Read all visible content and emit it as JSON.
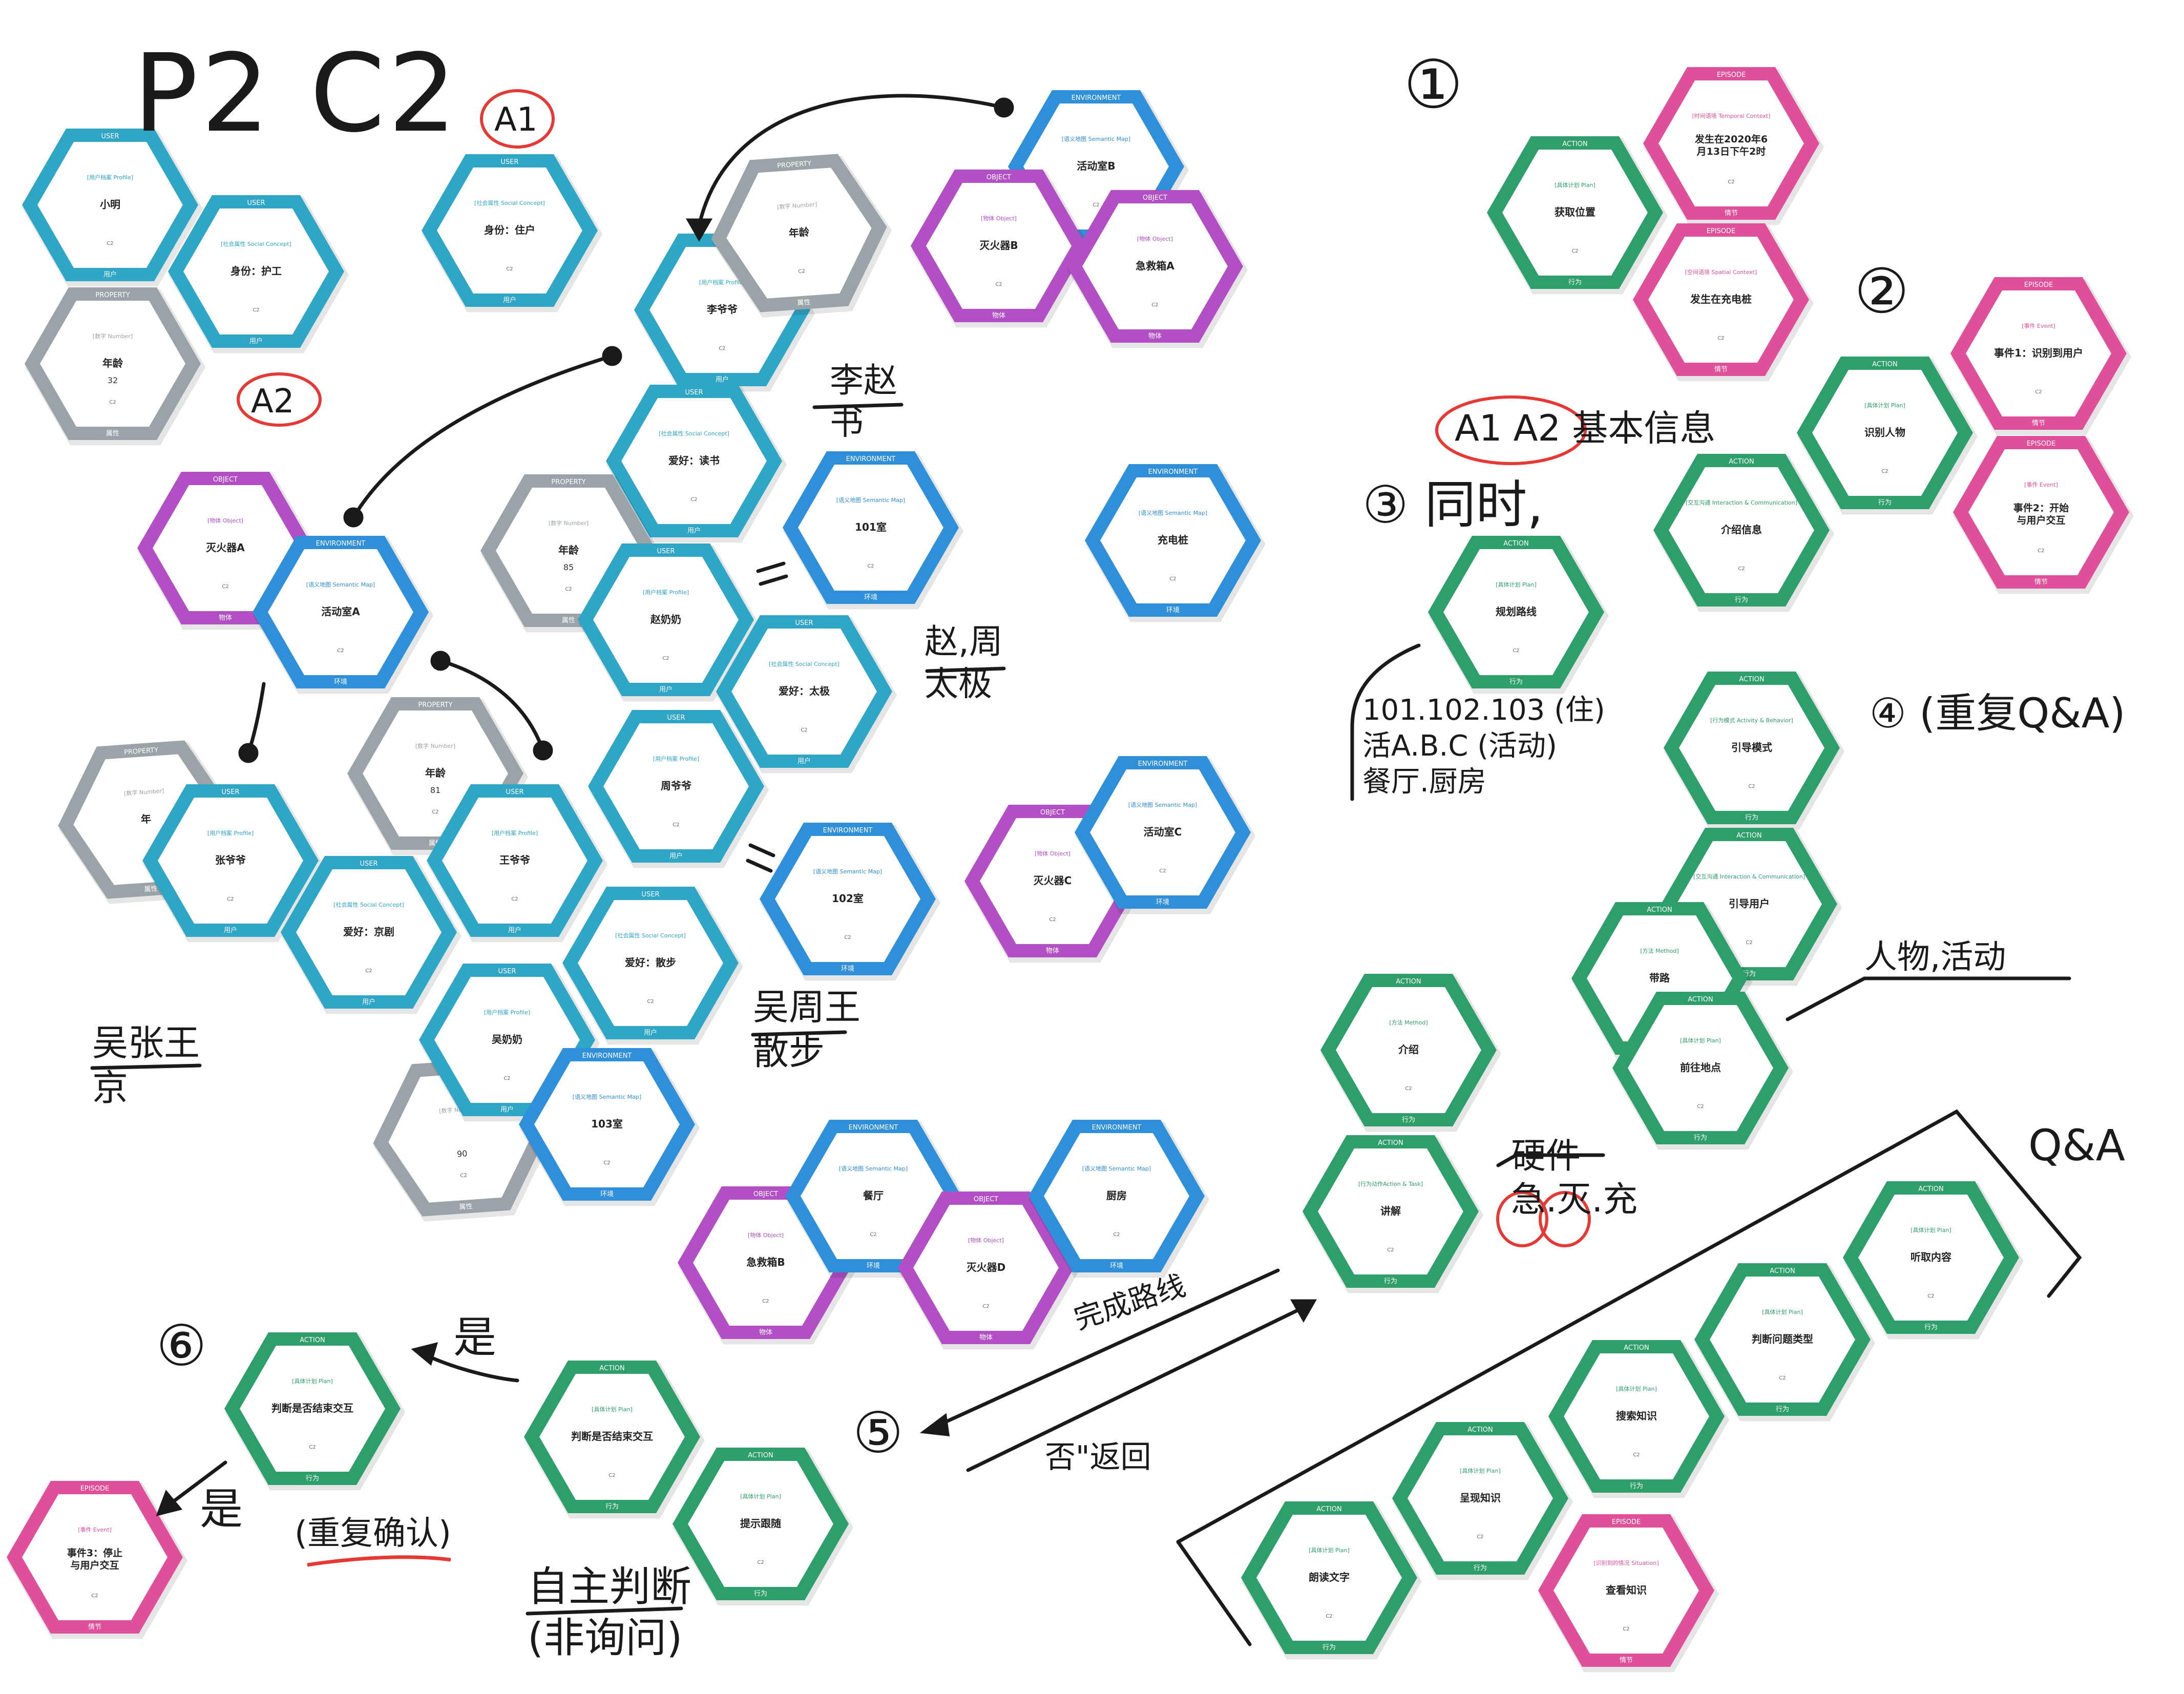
{
  "colors": {
    "user": "#2fa6c6",
    "property": "#9aa3a8",
    "social": "#2fa6c6",
    "environment": "#2f8fd8",
    "object": "#b24fc4",
    "action": "#2e9e6a",
    "episode": "#e0509a",
    "ink": "#1a1a1a",
    "circle_red": "#e53935"
  },
  "board_title": "P2  C2",
  "handwriting": {
    "a1": "A1",
    "a2": "A2",
    "zhao_zhou": "赵,周\n太极",
    "li_zhao": "李赵\n书",
    "wu_zhang_wang": "吴张王\n京",
    "wu_zhou_wang": "吴周王\n散步",
    "step1": "①",
    "step2": "②",
    "basic_info": "A1  A2 基本信息",
    "step3": "③ 同时,",
    "rooms": "101.102.103 (住)\n活A.B.C (活动)\n餐厅.厨房",
    "step4": "④ (重复Q&A)",
    "people_activity": "人物,活动",
    "hardware": "硬件\n急.灭.充",
    "qa": "Q&A",
    "complete_route": "完成路线",
    "step5": "⑤",
    "no_return": "否\"返回",
    "step6": "⑥",
    "yes1": "是",
    "yes2": "是",
    "repeat_confirm": "(重复确认)",
    "self_judge": "自主判断\n(非询问)"
  },
  "cards": [
    {
      "id": "c-xiaoming",
      "type": "user",
      "header": "USER",
      "sub": "[用户档案 Profile]",
      "text": "小明",
      "extra": "",
      "footer": "用户"
    },
    {
      "id": "c-nurse",
      "type": "social",
      "header": "USER",
      "sub": "[社会属性 Social Concept]",
      "text": "身份：护工",
      "extra": "",
      "footer": "用户"
    },
    {
      "id": "c-age32",
      "type": "property",
      "header": "PROPERTY",
      "sub": "[数字 Number]",
      "text": "年龄",
      "extra": "32",
      "footer": "属性"
    },
    {
      "id": "c-resident",
      "type": "social",
      "header": "USER",
      "sub": "[社会属性 Social Concept]",
      "text": "身份：住户",
      "extra": "",
      "footer": "用户"
    },
    {
      "id": "c-li",
      "type": "user",
      "header": "USER",
      "sub": "[用户档案 Profile]",
      "text": "李爷爷",
      "extra": "",
      "footer": "用户"
    },
    {
      "id": "c-li-age",
      "type": "property",
      "header": "PROPERTY",
      "sub": "[数字 Number]",
      "text": "年龄",
      "extra": "",
      "footer": "属性"
    },
    {
      "id": "c-reading",
      "type": "social",
      "header": "USER",
      "sub": "[社会属性 Social Concept]",
      "text": "爱好：读书",
      "extra": "",
      "footer": "用户"
    },
    {
      "id": "c-room101",
      "type": "env",
      "header": "ENVIRONMENT",
      "sub": "[语义地图 Semantic Map]",
      "text": "101室",
      "extra": "",
      "footer": "环境"
    },
    {
      "id": "c-charger",
      "type": "env",
      "header": "ENVIRONMENT",
      "sub": "[语义地图 Semantic Map]",
      "text": "充电桩",
      "extra": "",
      "footer": "环境"
    },
    {
      "id": "c-zhao-age",
      "type": "property",
      "header": "PROPERTY",
      "sub": "[数字 Number]",
      "text": "年龄",
      "extra": "85",
      "footer": "属性"
    },
    {
      "id": "c-zhao",
      "type": "user",
      "header": "USER",
      "sub": "[用户档案 Profile]",
      "text": "赵奶奶",
      "extra": "",
      "footer": "用户"
    },
    {
      "id": "c-taichi",
      "type": "social",
      "header": "USER",
      "sub": "[社会属性 Social Concept]",
      "text": "爱好：太极",
      "extra": "",
      "footer": "用户"
    },
    {
      "id": "c-zhou",
      "type": "user",
      "header": "USER",
      "sub": "[用户档案 Profile]",
      "text": "周爷爷",
      "extra": "",
      "footer": "用户"
    },
    {
      "id": "c-room102",
      "type": "env",
      "header": "ENVIRONMENT",
      "sub": "[语义地图 Semantic Map]",
      "text": "102室",
      "extra": "",
      "footer": "环境"
    },
    {
      "id": "c-roomB",
      "type": "env",
      "header": "ENVIRONMENT",
      "sub": "[语义地图 Semantic Map]",
      "text": "活动室B",
      "extra": "",
      "footer": "环境"
    },
    {
      "id": "c-extB",
      "type": "object",
      "header": "OBJECT",
      "sub": "[物体 Object]",
      "text": "灭火器B",
      "extra": "",
      "footer": "物体"
    },
    {
      "id": "c-aidA",
      "type": "object",
      "header": "OBJECT",
      "sub": "[物体 Object]",
      "text": "急救箱A",
      "extra": "",
      "footer": "物体"
    },
    {
      "id": "c-extA",
      "type": "object",
      "header": "OBJECT",
      "sub": "[物体 Object]",
      "text": "灭火器A",
      "extra": "",
      "footer": "物体"
    },
    {
      "id": "c-roomA",
      "type": "env",
      "header": "ENVIRONMENT",
      "sub": "[语义地图 Semantic Map]",
      "text": "活动室A",
      "extra": "",
      "footer": "环境"
    },
    {
      "id": "c-zhang-age",
      "type": "property",
      "header": "PROPERTY",
      "sub": "[数字 Number]",
      "text": "年",
      "extra": "",
      "footer": "属性"
    },
    {
      "id": "c-zhang",
      "type": "user",
      "header": "USER",
      "sub": "[用户档案 Profile]",
      "text": "张爷爷",
      "extra": "",
      "footer": "用户"
    },
    {
      "id": "c-wang-age",
      "type": "property",
      "header": "PROPERTY",
      "sub": "[数字 Number]",
      "text": "年龄",
      "extra": "81",
      "footer": "属性"
    },
    {
      "id": "c-wang",
      "type": "user",
      "header": "USER",
      "sub": "[用户档案 Profile]",
      "text": "王爷爷",
      "extra": "",
      "footer": "用户"
    },
    {
      "id": "c-opera",
      "type": "social",
      "header": "USER",
      "sub": "[社会属性 Social Concept]",
      "text": "爱好：京剧",
      "extra": "",
      "footer": "用户"
    },
    {
      "id": "c-walk",
      "type": "social",
      "header": "USER",
      "sub": "[社会属性 Social Concept]",
      "text": "爱好：散步",
      "extra": "",
      "footer": "用户"
    },
    {
      "id": "c-wu-age",
      "type": "property",
      "header": "PROPERTY",
      "sub": "[数字 Number]",
      "text": "",
      "extra": "90",
      "footer": "属性"
    },
    {
      "id": "c-wu",
      "type": "user",
      "header": "USER",
      "sub": "[用户档案 Profile]",
      "text": "吴奶奶",
      "extra": "",
      "footer": "用户"
    },
    {
      "id": "c-room103",
      "type": "env",
      "header": "ENVIRONMENT",
      "sub": "[语义地图 Semantic Map]",
      "text": "103室",
      "extra": "",
      "footer": "环境"
    },
    {
      "id": "c-extC",
      "type": "object",
      "header": "OBJECT",
      "sub": "[物体 Object]",
      "text": "灭火器C",
      "extra": "",
      "footer": "物体"
    },
    {
      "id": "c-roomC",
      "type": "env",
      "header": "ENVIRONMENT",
      "sub": "[语义地图 Semantic Map]",
      "text": "活动室C",
      "extra": "",
      "footer": "环境"
    },
    {
      "id": "c-aidB",
      "type": "object",
      "header": "OBJECT",
      "sub": "[物体 Object]",
      "text": "急救箱B",
      "extra": "",
      "footer": "物体"
    },
    {
      "id": "c-dining",
      "type": "env",
      "header": "ENVIRONMENT",
      "sub": "[语义地图 Semantic Map]",
      "text": "餐厅",
      "extra": "",
      "footer": "环境"
    },
    {
      "id": "c-extD",
      "type": "object",
      "header": "OBJECT",
      "sub": "[物体 Object]",
      "text": "灭火器D",
      "extra": "",
      "footer": "物体"
    },
    {
      "id": "c-kitchen",
      "type": "env",
      "header": "ENVIRONMENT",
      "sub": "[语义地图 Semantic Map]",
      "text": "厨房",
      "extra": "",
      "footer": "环境"
    },
    {
      "id": "c-getpos",
      "type": "action",
      "header": "ACTION",
      "sub": "[具体计划 Plan]",
      "text": "获取位置",
      "extra": "",
      "footer": "行为"
    },
    {
      "id": "c-time",
      "type": "episode",
      "header": "EPISODE",
      "sub": "[时间语境 Temporal Context]",
      "text": "发生在2020年6月13日下午2时",
      "extra": "",
      "footer": "情节"
    },
    {
      "id": "c-atcharger",
      "type": "episode",
      "header": "EPISODE",
      "sub": "[空间语境 Spatial Context]",
      "text": "发生在充电桩",
      "extra": "",
      "footer": "情节"
    },
    {
      "id": "c-identify",
      "type": "action",
      "header": "ACTION",
      "sub": "[具体计划 Plan]",
      "text": "识别人物",
      "extra": "",
      "footer": "行为"
    },
    {
      "id": "c-ev1",
      "type": "episode",
      "header": "EPISODE",
      "sub": "[事件 Event]",
      "text": "事件1：识别到用户",
      "extra": "",
      "footer": "情节"
    },
    {
      "id": "c-ev2",
      "type": "episode",
      "header": "EPISODE",
      "sub": "[事件 Event]",
      "text": "事件2：开始与用户交互",
      "extra": "",
      "footer": "情节"
    },
    {
      "id": "c-intro-info",
      "type": "action",
      "header": "ACTION",
      "sub": "[交互沟通 Interaction & Communication]",
      "text": "介绍信息",
      "extra": "",
      "footer": "行为"
    },
    {
      "id": "c-plan-route",
      "type": "action",
      "header": "ACTION",
      "sub": "[具体计划 Plan]",
      "text": "规划路线",
      "extra": "",
      "footer": "行为"
    },
    {
      "id": "c-guide-mode",
      "type": "action",
      "header": "ACTION",
      "sub": "[行为模式 Activity & Behavior]",
      "text": "引导模式",
      "extra": "",
      "footer": "行为"
    },
    {
      "id": "c-guide-user",
      "type": "action",
      "header": "ACTION",
      "sub": "[交互沟通 Interaction & Communication]",
      "text": "引导用户",
      "extra": "",
      "footer": "行为"
    },
    {
      "id": "c-lead",
      "type": "action",
      "header": "ACTION",
      "sub": "[方法 Method]",
      "text": "带路",
      "extra": "",
      "footer": "行为"
    },
    {
      "id": "c-introduce",
      "type": "action",
      "header": "ACTION",
      "sub": "[方法 Method]",
      "text": "介绍",
      "extra": "",
      "footer": "行为"
    },
    {
      "id": "c-goto",
      "type": "action",
      "header": "ACTION",
      "sub": "[具体计划 Plan]",
      "text": "前往地点",
      "extra": "",
      "footer": "行为"
    },
    {
      "id": "c-explain",
      "type": "action",
      "header": "ACTION",
      "sub": "[行为动作Action & Task]",
      "text": "讲解",
      "extra": "",
      "footer": "行为"
    },
    {
      "id": "c-listen",
      "type": "action",
      "header": "ACTION",
      "sub": "[具体计划 Plan]",
      "text": "听取内容",
      "extra": "",
      "footer": "行为"
    },
    {
      "id": "c-qtype",
      "type": "action",
      "header": "ACTION",
      "sub": "[具体计划 Plan]",
      "text": "判断问题类型",
      "extra": "",
      "footer": "行为"
    },
    {
      "id": "c-search",
      "type": "action",
      "header": "ACTION",
      "sub": "[具体计划 Plan]",
      "text": "搜索知识",
      "extra": "",
      "footer": "行为"
    },
    {
      "id": "c-present",
      "type": "action",
      "header": "ACTION",
      "sub": "[具体计划 Plan]",
      "text": "呈现知识",
      "extra": "",
      "footer": "行为"
    },
    {
      "id": "c-read",
      "type": "action",
      "header": "ACTION",
      "sub": "[具体计划 Plan]",
      "text": "朗读文字",
      "extra": "",
      "footer": "行为"
    },
    {
      "id": "c-view",
      "type": "episode",
      "header": "EPISODE",
      "sub": "[识别到的情况 Situation]",
      "text": "查看知识",
      "extra": "",
      "footer": "情节"
    },
    {
      "id": "c-judge-end",
      "type": "action",
      "header": "ACTION",
      "sub": "[具体计划 Plan]",
      "text": "判断是否结束交互",
      "extra": "",
      "footer": "行为"
    },
    {
      "id": "c-judge-end2",
      "type": "action",
      "header": "ACTION",
      "sub": "[具体计划 Plan]",
      "text": "判断是否结束交互",
      "extra": "",
      "footer": "行为"
    },
    {
      "id": "c-remind",
      "type": "action",
      "header": "ACTION",
      "sub": "[具体计划 Plan]",
      "text": "提示跟随",
      "extra": "",
      "footer": "行为"
    },
    {
      "id": "c-ev3",
      "type": "episode",
      "header": "EPISODE",
      "sub": "[事件 Event]",
      "text": "事件3：停止与用户交互",
      "extra": "",
      "footer": "情节"
    }
  ]
}
